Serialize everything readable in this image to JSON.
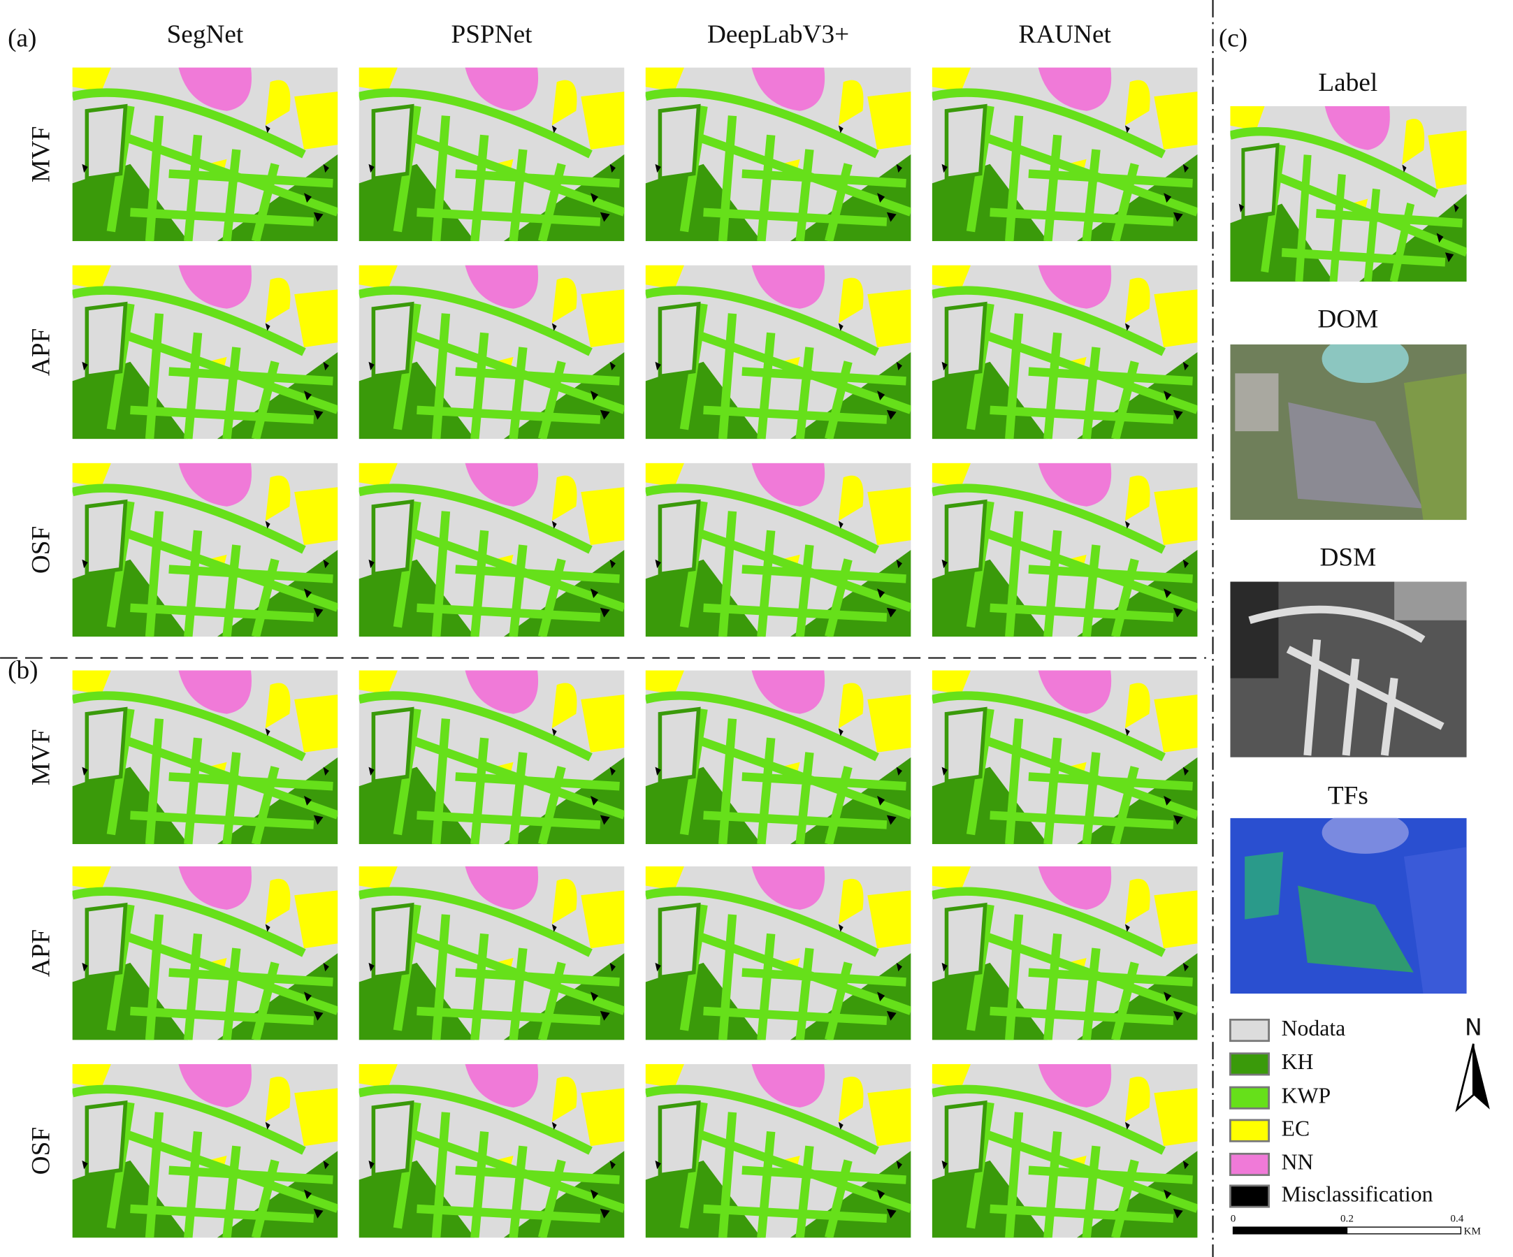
{
  "panels": {
    "a": "(a)",
    "b": "(b)",
    "c": "(c)"
  },
  "columns": [
    "SegNet",
    "PSPNet",
    "DeepLabV3+",
    "RAUNet"
  ],
  "rows_a": [
    "MVF",
    "APF",
    "OSF"
  ],
  "rows_b": [
    "MVF",
    "APF",
    "OSF"
  ],
  "reference": [
    "Label",
    "DOM",
    "DSM",
    "TFs"
  ],
  "legend": [
    {
      "label": "Nodata",
      "color": "#dcdcdc"
    },
    {
      "label": "KH",
      "color": "#3a9a0a"
    },
    {
      "label": "KWP",
      "color": "#66e01a"
    },
    {
      "label": "EC",
      "color": "#ffff00"
    },
    {
      "label": "NN",
      "color": "#f07ad8"
    },
    {
      "label": "Misclassification",
      "color": "#000000"
    }
  ],
  "north": "N",
  "scale": {
    "ticks": [
      "0",
      "0.2",
      "0.4"
    ],
    "unit": "KM"
  }
}
